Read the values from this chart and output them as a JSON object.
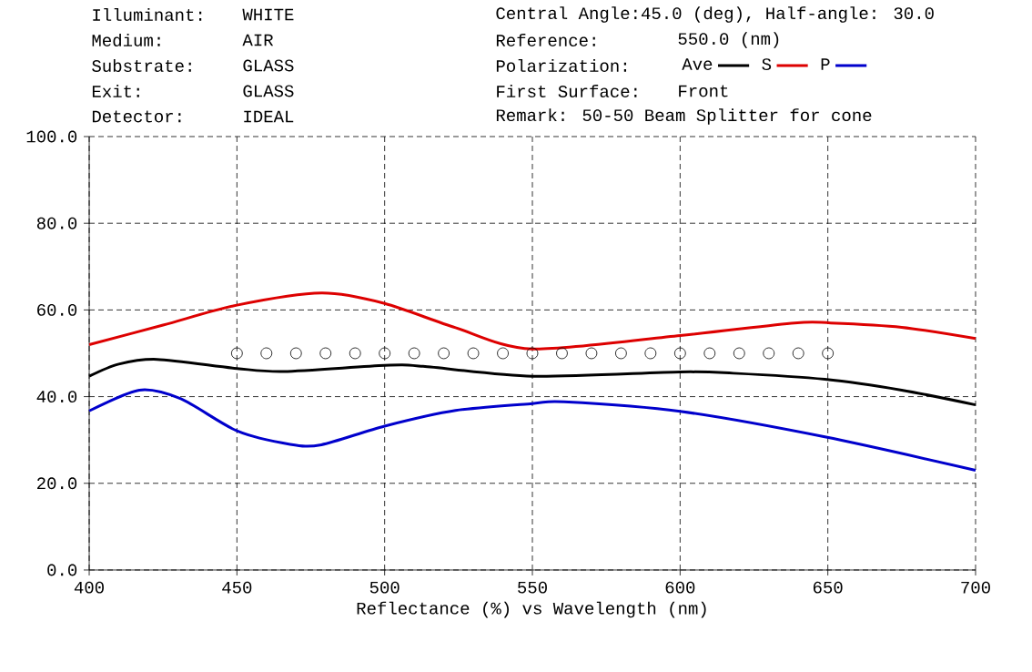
{
  "chart_data": {
    "type": "line",
    "xlabel": "Reflectance (%)  vs  Wavelength (nm)",
    "annotations": [
      "Illuminant:",
      "WHITE",
      "Central Angle:45.0 (deg), Half-angle: 30.0",
      "Medium:",
      "AIR",
      "Reference:",
      "550.0 (nm)",
      "Substrate:",
      "GLASS",
      "Polarization:",
      "Exit:",
      "GLASS",
      "First Surface:",
      "Front",
      "Detector:",
      "IDEAL",
      "Remark: 50-50 Beam Splitter for cone"
    ],
    "series": [
      {
        "name": "Ave",
        "color": "#000000",
        "x": [
          400,
          410,
          423,
          450,
          466,
          500,
          513,
          550,
          600,
          618,
          649,
          675,
          700
        ],
        "values": [
          44.7,
          47.5,
          48.6,
          46.5,
          45.8,
          47.2,
          47.0,
          44.7,
          45.7,
          45.4,
          44.0,
          41.5,
          38.1
        ]
      },
      {
        "name": "S",
        "color": "#dd0000",
        "x": [
          400,
          425,
          450,
          478.6,
          500,
          524,
          550,
          600,
          638.7,
          651,
          675,
          700
        ],
        "values": [
          52.0,
          56.5,
          61.1,
          63.9,
          61.5,
          55.9,
          51.0,
          54.1,
          57.0,
          57.0,
          56.0,
          53.4
        ]
      },
      {
        "name": "P",
        "color": "#0000cc",
        "x": [
          400,
          417,
          431,
          450,
          468,
          478.6,
          500,
          524,
          550,
          560.7,
          600,
          649,
          700
        ],
        "values": [
          36.7,
          41.5,
          39.5,
          32.1,
          29.0,
          28.9,
          33.2,
          36.8,
          38.4,
          38.8,
          36.6,
          30.7,
          23.0
        ]
      },
      {
        "type": "scatter",
        "color": "#000000",
        "marker": "circle",
        "x": [
          450,
          460,
          470,
          480,
          490,
          500,
          510,
          520,
          530,
          540,
          550,
          560,
          570,
          580,
          590,
          600,
          610,
          620,
          630,
          640,
          650
        ],
        "values": [
          50,
          50,
          50,
          50,
          50,
          50,
          50,
          50,
          50,
          50,
          50,
          50,
          50,
          50,
          50,
          50,
          50,
          50,
          50,
          50,
          50
        ]
      }
    ],
    "xlim": [
      400,
      700
    ],
    "xticks": [
      400,
      450,
      500,
      550,
      600,
      650,
      700
    ],
    "ylim": [
      0,
      100
    ],
    "yticks": [
      {
        "value": 0,
        "label": "0.0"
      },
      {
        "value": 20,
        "label": "20.0"
      },
      {
        "value": 40,
        "label": "40.0"
      },
      {
        "value": 60,
        "label": "60.0"
      },
      {
        "value": 80,
        "label": "80.0"
      },
      {
        "value": 100,
        "label": "100.0"
      }
    ],
    "grid": true,
    "legend": "top",
    "marker": "none",
    "line_style": "solid"
  }
}
